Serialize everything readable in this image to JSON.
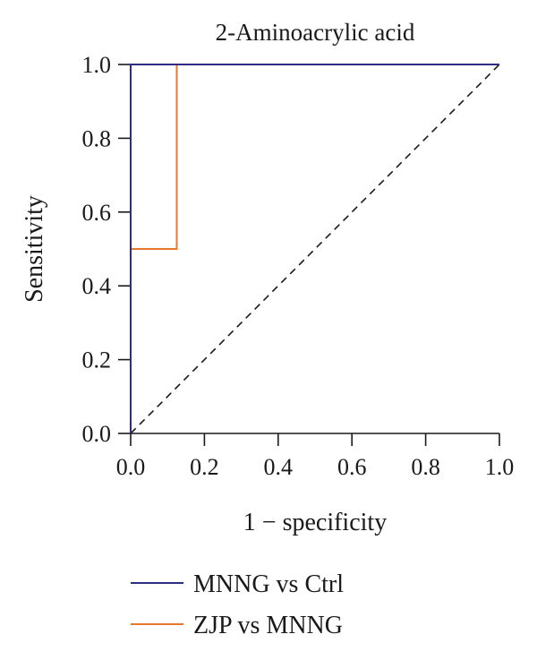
{
  "chart_data": {
    "type": "line",
    "title": "2-Aminoacrylic acid",
    "xlabel": "1 − specificity",
    "ylabel": "Sensitivity",
    "xlim": [
      0,
      1
    ],
    "ylim": [
      0,
      1
    ],
    "x_ticks": [
      0.0,
      0.2,
      0.4,
      0.6,
      0.8,
      1.0
    ],
    "y_ticks": [
      0.0,
      0.2,
      0.4,
      0.6,
      0.8,
      1.0
    ],
    "x_tick_labels": [
      "0.0",
      "0.2",
      "0.4",
      "0.6",
      "0.8",
      "1.0"
    ],
    "y_tick_labels": [
      "0.0",
      "0.2",
      "0.4",
      "0.6",
      "0.8",
      "1.0"
    ],
    "grid": false,
    "legend_position": "bottom",
    "series": [
      {
        "name": "MNNG vs Ctrl",
        "color": "#2e2d83",
        "x": [
          0,
          0,
          1
        ],
        "y": [
          0,
          1,
          1
        ]
      },
      {
        "name": "ZJP vs MNNG",
        "color": "#e8772e",
        "x": [
          0,
          0,
          0.125,
          0.125,
          1
        ],
        "y": [
          0,
          0.5,
          0.5,
          1,
          1
        ]
      }
    ],
    "reference_line": {
      "style": "dashed",
      "color": "#1a1a1a",
      "x": [
        0,
        1
      ],
      "y": [
        0,
        1
      ]
    }
  }
}
